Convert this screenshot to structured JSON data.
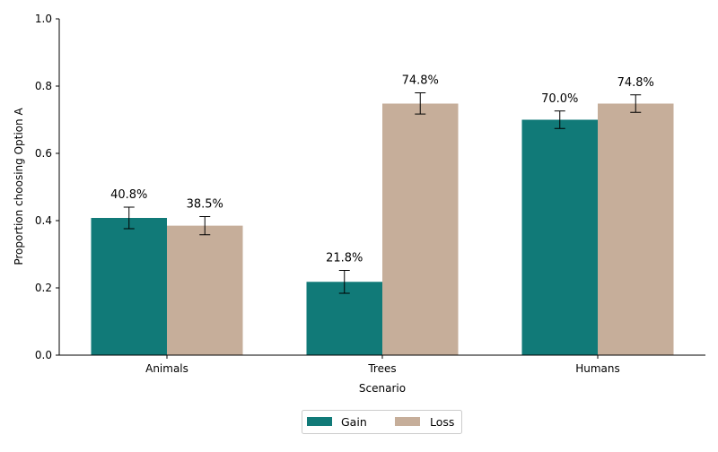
{
  "chart_data": {
    "type": "bar",
    "title": "",
    "xlabel": "Scenario",
    "ylabel": "Proportion choosing Option A",
    "categories": [
      "Animals",
      "Trees",
      "Humans"
    ],
    "ylim": [
      0,
      1.0
    ],
    "yticks": [
      "0.0",
      "0.2",
      "0.4",
      "0.6",
      "0.8",
      "1.0"
    ],
    "grid": false,
    "legend_position": "bottom-center",
    "series": [
      {
        "name": "Gain",
        "color": "#117a78",
        "values": [
          0.408,
          0.218,
          0.7
        ],
        "error_low": [
          0.376,
          0.184,
          0.674
        ],
        "error_high": [
          0.44,
          0.252,
          0.726
        ],
        "labels": [
          "40.8%",
          "21.8%",
          "70.0%"
        ]
      },
      {
        "name": "Loss",
        "color": "#c6ae9a",
        "values": [
          0.385,
          0.748,
          0.748
        ],
        "error_low": [
          0.358,
          0.717,
          0.722
        ],
        "error_high": [
          0.412,
          0.78,
          0.774
        ],
        "labels": [
          "38.5%",
          "74.8%",
          "74.8%"
        ]
      }
    ]
  }
}
